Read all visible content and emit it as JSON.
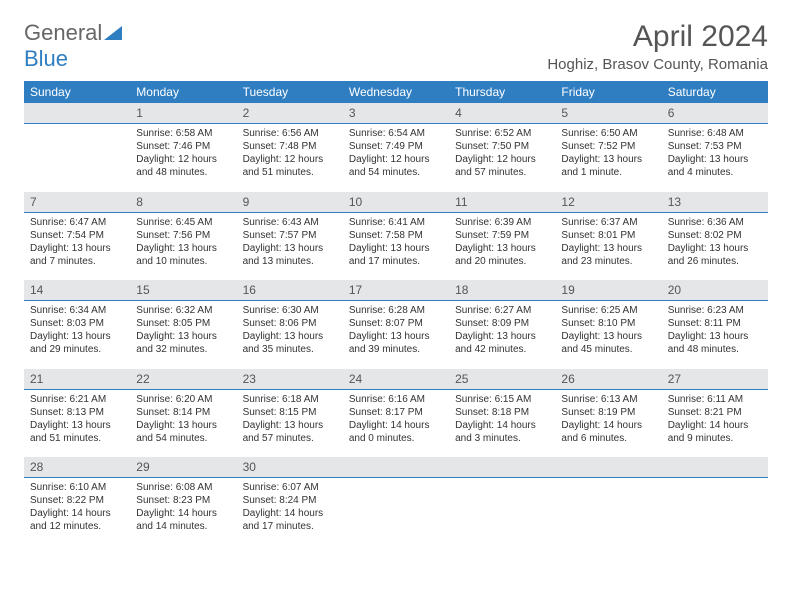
{
  "logo": {
    "word1": "General",
    "word2": "Blue"
  },
  "title": "April 2024",
  "location": "Hoghiz, Brasov County, Romania",
  "calendar": {
    "type": "table",
    "header_bg": "#2f7ec2",
    "header_fg": "#ffffff",
    "daynum_bg": "#e4e6e8",
    "daynum_border": "#2f7ec2",
    "font_family": "Arial",
    "day_fontsize": 12,
    "cell_fontsize": 10,
    "days": [
      "Sunday",
      "Monday",
      "Tuesday",
      "Wednesday",
      "Thursday",
      "Friday",
      "Saturday"
    ],
    "weeks": [
      [
        null,
        {
          "n": "1",
          "sr": "6:58 AM",
          "ss": "7:46 PM",
          "d1": "12 hours",
          "d2": "and 48 minutes."
        },
        {
          "n": "2",
          "sr": "6:56 AM",
          "ss": "7:48 PM",
          "d1": "12 hours",
          "d2": "and 51 minutes."
        },
        {
          "n": "3",
          "sr": "6:54 AM",
          "ss": "7:49 PM",
          "d1": "12 hours",
          "d2": "and 54 minutes."
        },
        {
          "n": "4",
          "sr": "6:52 AM",
          "ss": "7:50 PM",
          "d1": "12 hours",
          "d2": "and 57 minutes."
        },
        {
          "n": "5",
          "sr": "6:50 AM",
          "ss": "7:52 PM",
          "d1": "13 hours",
          "d2": "and 1 minute."
        },
        {
          "n": "6",
          "sr": "6:48 AM",
          "ss": "7:53 PM",
          "d1": "13 hours",
          "d2": "and 4 minutes."
        }
      ],
      [
        {
          "n": "7",
          "sr": "6:47 AM",
          "ss": "7:54 PM",
          "d1": "13 hours",
          "d2": "and 7 minutes."
        },
        {
          "n": "8",
          "sr": "6:45 AM",
          "ss": "7:56 PM",
          "d1": "13 hours",
          "d2": "and 10 minutes."
        },
        {
          "n": "9",
          "sr": "6:43 AM",
          "ss": "7:57 PM",
          "d1": "13 hours",
          "d2": "and 13 minutes."
        },
        {
          "n": "10",
          "sr": "6:41 AM",
          "ss": "7:58 PM",
          "d1": "13 hours",
          "d2": "and 17 minutes."
        },
        {
          "n": "11",
          "sr": "6:39 AM",
          "ss": "7:59 PM",
          "d1": "13 hours",
          "d2": "and 20 minutes."
        },
        {
          "n": "12",
          "sr": "6:37 AM",
          "ss": "8:01 PM",
          "d1": "13 hours",
          "d2": "and 23 minutes."
        },
        {
          "n": "13",
          "sr": "6:36 AM",
          "ss": "8:02 PM",
          "d1": "13 hours",
          "d2": "and 26 minutes."
        }
      ],
      [
        {
          "n": "14",
          "sr": "6:34 AM",
          "ss": "8:03 PM",
          "d1": "13 hours",
          "d2": "and 29 minutes."
        },
        {
          "n": "15",
          "sr": "6:32 AM",
          "ss": "8:05 PM",
          "d1": "13 hours",
          "d2": "and 32 minutes."
        },
        {
          "n": "16",
          "sr": "6:30 AM",
          "ss": "8:06 PM",
          "d1": "13 hours",
          "d2": "and 35 minutes."
        },
        {
          "n": "17",
          "sr": "6:28 AM",
          "ss": "8:07 PM",
          "d1": "13 hours",
          "d2": "and 39 minutes."
        },
        {
          "n": "18",
          "sr": "6:27 AM",
          "ss": "8:09 PM",
          "d1": "13 hours",
          "d2": "and 42 minutes."
        },
        {
          "n": "19",
          "sr": "6:25 AM",
          "ss": "8:10 PM",
          "d1": "13 hours",
          "d2": "and 45 minutes."
        },
        {
          "n": "20",
          "sr": "6:23 AM",
          "ss": "8:11 PM",
          "d1": "13 hours",
          "d2": "and 48 minutes."
        }
      ],
      [
        {
          "n": "21",
          "sr": "6:21 AM",
          "ss": "8:13 PM",
          "d1": "13 hours",
          "d2": "and 51 minutes."
        },
        {
          "n": "22",
          "sr": "6:20 AM",
          "ss": "8:14 PM",
          "d1": "13 hours",
          "d2": "and 54 minutes."
        },
        {
          "n": "23",
          "sr": "6:18 AM",
          "ss": "8:15 PM",
          "d1": "13 hours",
          "d2": "and 57 minutes."
        },
        {
          "n": "24",
          "sr": "6:16 AM",
          "ss": "8:17 PM",
          "d1": "14 hours",
          "d2": "and 0 minutes."
        },
        {
          "n": "25",
          "sr": "6:15 AM",
          "ss": "8:18 PM",
          "d1": "14 hours",
          "d2": "and 3 minutes."
        },
        {
          "n": "26",
          "sr": "6:13 AM",
          "ss": "8:19 PM",
          "d1": "14 hours",
          "d2": "and 6 minutes."
        },
        {
          "n": "27",
          "sr": "6:11 AM",
          "ss": "8:21 PM",
          "d1": "14 hours",
          "d2": "and 9 minutes."
        }
      ],
      [
        {
          "n": "28",
          "sr": "6:10 AM",
          "ss": "8:22 PM",
          "d1": "14 hours",
          "d2": "and 12 minutes."
        },
        {
          "n": "29",
          "sr": "6:08 AM",
          "ss": "8:23 PM",
          "d1": "14 hours",
          "d2": "and 14 minutes."
        },
        {
          "n": "30",
          "sr": "6:07 AM",
          "ss": "8:24 PM",
          "d1": "14 hours",
          "d2": "and 17 minutes."
        },
        null,
        null,
        null,
        null
      ]
    ],
    "labels": {
      "sunrise": "Sunrise:",
      "sunset": "Sunset:",
      "daylight": "Daylight:"
    }
  }
}
